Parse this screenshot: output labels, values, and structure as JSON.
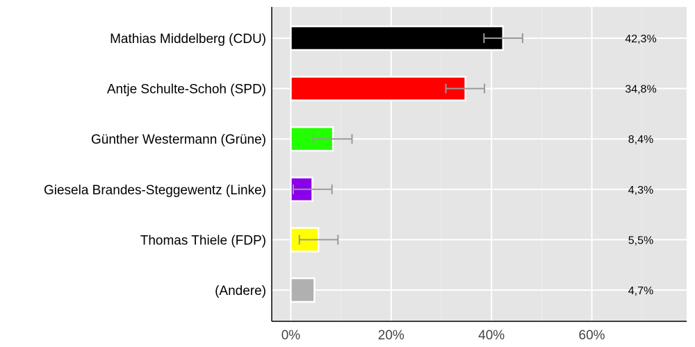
{
  "chart_data": {
    "type": "bar",
    "orientation": "horizontal",
    "categories": [
      "Mathias Middelberg (CDU)",
      "Antje Schulte-Schoh (SPD)",
      "Günther Westermann (Grüne)",
      "Giesela Brandes-Steggewentz (Linke)",
      "Thomas Thiele (FDP)",
      "(Andere)"
    ],
    "values": [
      42.3,
      34.8,
      8.4,
      4.3,
      5.5,
      4.7
    ],
    "value_labels": [
      "42,3%",
      "34,8%",
      "8,4%",
      "4,3%",
      "5,5%",
      "4,7%"
    ],
    "colors": [
      "#000000",
      "#ff0000",
      "#22ff00",
      "#8b00ea",
      "#ffff00",
      "#b0b0b0"
    ],
    "error_low": [
      38.5,
      30.9,
      4.5,
      0.5,
      1.7,
      null
    ],
    "error_high": [
      46.2,
      38.6,
      12.2,
      8.2,
      9.4,
      null
    ],
    "xticks": [
      0,
      20,
      40,
      60
    ],
    "xtick_labels": [
      "0%",
      "20%",
      "40%",
      "60%"
    ],
    "xlim": [
      -3.8,
      78.9
    ],
    "grid": true,
    "title": "",
    "xlabel": "",
    "ylabel": ""
  }
}
